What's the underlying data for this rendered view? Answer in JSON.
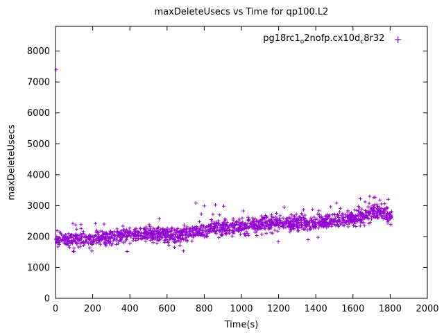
{
  "chart_data": {
    "type": "scatter",
    "title": "maxDeleteUsecs vs Time for qp100.L2",
    "xlabel": "Time(s)",
    "ylabel": "maxDeleteUsecs",
    "xlim": [
      0,
      2000
    ],
    "ylim": [
      0,
      8800
    ],
    "xticks": [
      0,
      200,
      400,
      600,
      800,
      1000,
      1200,
      1400,
      1600,
      1800,
      2000
    ],
    "yticks": [
      0,
      1000,
      2000,
      3000,
      4000,
      5000,
      6000,
      7000,
      8000
    ],
    "grid": false,
    "border_color": "#000000",
    "tick_length": 6,
    "legend": {
      "position": "top-right",
      "marker": "+",
      "color": "#9400d3",
      "label_plain": "pg18rc1o2nofp.cx10dc8r32",
      "label_segments": [
        {
          "text": "pg18rc1"
        },
        {
          "text": "o",
          "subscript": true
        },
        {
          "text": "2nofp.cx10d"
        },
        {
          "text": "c",
          "subscript": true
        },
        {
          "text": "8r32"
        }
      ]
    },
    "series": [
      {
        "name": "pg18rc1o2nofp.cx10dc8r32",
        "color": "#9400d3",
        "marker": "plus",
        "marker_size": 2.5,
        "generator": {
          "seed": 987654321,
          "n_points": 1600,
          "x_min": 2,
          "x_max": 1808,
          "trend": [
            [
              0,
              1880
            ],
            [
              100,
              1920
            ],
            [
              200,
              1950
            ],
            [
              300,
              1990
            ],
            [
              400,
              2050
            ],
            [
              500,
              2090
            ],
            [
              600,
              2060
            ],
            [
              660,
              2030
            ],
            [
              720,
              2150
            ],
            [
              800,
              2210
            ],
            [
              900,
              2270
            ],
            [
              1000,
              2330
            ],
            [
              1100,
              2370
            ],
            [
              1200,
              2410
            ],
            [
              1300,
              2430
            ],
            [
              1400,
              2440
            ],
            [
              1500,
              2490
            ],
            [
              1600,
              2600
            ],
            [
              1680,
              2720
            ],
            [
              1740,
              2790
            ],
            [
              1800,
              2680
            ]
          ],
          "noise_sd": 120,
          "spike_prob": 0.05,
          "spike_min": 120,
          "spike_max": 450,
          "spike_negative_fraction": 0.25
        },
        "outliers": [
          [
            3,
            7400
          ],
          [
            95,
            1520
          ],
          [
            610,
            1720
          ],
          [
            640,
            1650
          ],
          [
            755,
            3080
          ],
          [
            800,
            2990
          ],
          [
            860,
            3020
          ],
          [
            905,
            2980
          ],
          [
            1230,
            2950
          ],
          [
            1480,
            2960
          ],
          [
            1640,
            3220
          ],
          [
            1665,
            3120
          ],
          [
            1690,
            3300
          ],
          [
            1712,
            3260
          ],
          [
            1745,
            3180
          ],
          [
            1770,
            3060
          ]
        ]
      }
    ]
  }
}
